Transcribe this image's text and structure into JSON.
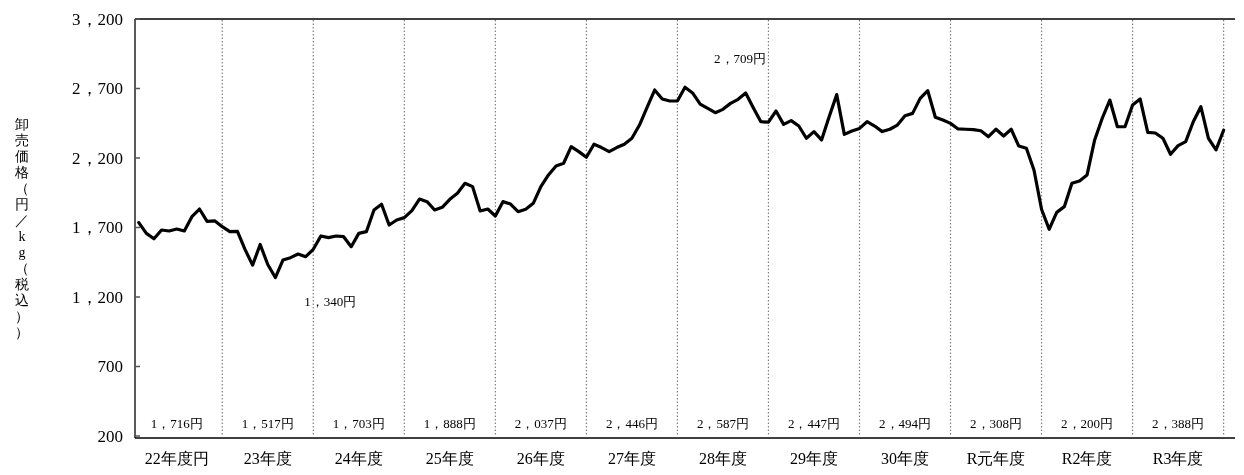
{
  "chart_data": {
    "type": "line",
    "ylabel": "卸売価格（円／kg（税込））",
    "categories": [
      null,
      null,
      null,
      null,
      null,
      "22年度円",
      null,
      null,
      null,
      null,
      null,
      null,
      null,
      null,
      null,
      null,
      null,
      "23年度",
      null,
      null,
      null,
      null,
      null,
      null,
      null,
      null,
      null,
      null,
      null,
      "24年度",
      null,
      null,
      null,
      null,
      null,
      null,
      null,
      null,
      null,
      null,
      null,
      "25年度",
      null,
      null,
      null,
      null,
      null,
      null,
      null,
      null,
      null,
      null,
      null,
      "26年度",
      null,
      null,
      null,
      null,
      null,
      null,
      null,
      null,
      null,
      null,
      null,
      "27年度",
      null,
      null,
      null,
      null,
      null,
      null,
      null,
      null,
      null,
      null,
      null,
      "28年度",
      null,
      null,
      null,
      null,
      null,
      null,
      null,
      null,
      null,
      null,
      null,
      "29年度",
      null,
      null,
      null,
      null,
      null,
      null,
      null,
      null,
      null,
      null,
      null,
      "30年度",
      null,
      null,
      null,
      null,
      null,
      null,
      null,
      null,
      null,
      null,
      null,
      "R元年度",
      null,
      null,
      null,
      null,
      null,
      null,
      null,
      null,
      null,
      null,
      null,
      "R2年度",
      null,
      null,
      null,
      null,
      null,
      null,
      null,
      null,
      null,
      null,
      null,
      "R3年度",
      null,
      null,
      null,
      null,
      null,
      null
    ],
    "series": [
      {
        "color": "#000000",
        "values": [
          1735,
          1658,
          1619,
          1682,
          1675,
          1689,
          1675,
          1778,
          1833,
          1744,
          1748,
          1706,
          1670,
          1672,
          1543,
          1429,
          1578,
          1434,
          1340,
          1466,
          1483,
          1509,
          1490,
          1543,
          1639,
          1627,
          1639,
          1634,
          1562,
          1658,
          1670,
          1826,
          1867,
          1718,
          1754,
          1771,
          1821,
          1905,
          1886,
          1826,
          1845,
          1903,
          1946,
          2018,
          1994,
          1819,
          1833,
          1783,
          1886,
          1869,
          1814,
          1831,
          1874,
          1994,
          2078,
          2143,
          2162,
          2282,
          2246,
          2205,
          2299,
          2275,
          2246,
          2275,
          2299,
          2342,
          2437,
          2564,
          2689,
          2624,
          2610,
          2610,
          2709,
          2668,
          2588,
          2557,
          2526,
          2550,
          2593,
          2622,
          2668,
          2562,
          2461,
          2458,
          2538,
          2442,
          2469,
          2430,
          2342,
          2390,
          2330,
          2497,
          2656,
          2370,
          2394,
          2413,
          2461,
          2430,
          2390,
          2407,
          2437,
          2504,
          2521,
          2629,
          2684,
          2493,
          2473,
          2449,
          2409,
          2407,
          2404,
          2396,
          2353,
          2407,
          2358,
          2407,
          2286,
          2270,
          2114,
          1831,
          1687,
          1809,
          1850,
          2018,
          2035,
          2078,
          2330,
          2486,
          2617,
          2425,
          2425,
          2581,
          2624,
          2384,
          2380,
          2342,
          2227,
          2289,
          2318,
          2461,
          2569,
          2342,
          2258,
          2400
        ]
      }
    ],
    "ylim": [
      200,
      3200
    ],
    "yticks": [
      200,
      {
        "value": 700,
        "label": "700"
      },
      {
        "value": 1200,
        "label": "1，200"
      },
      {
        "value": 1700,
        "label": "1，700"
      },
      {
        "value": 2200,
        "label": "2，200"
      },
      {
        "value": 2700,
        "label": "2，700"
      },
      {
        "value": 3200,
        "label": "3，200"
      }
    ],
    "annotations": [
      "1，716円",
      "1，517円",
      "1，703円",
      "1，888円",
      "2，037円",
      "2，446円",
      "2，587円",
      "2，447円",
      "2，494円",
      "2，308円",
      "2，200円",
      "2，388円",
      "2，709円",
      "1，340円"
    ],
    "grid": "x",
    "marker": "none",
    "line_style": "solid"
  }
}
